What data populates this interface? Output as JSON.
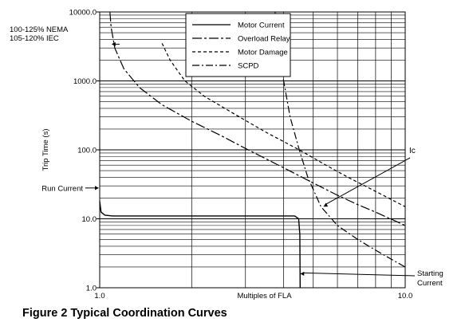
{
  "caption": "Figure 2 Typical Coordination Curves",
  "chart_data": {
    "type": "line",
    "title": "",
    "xlabel": "Multiples of FLA",
    "ylabel": "Trip Time (s)",
    "x_scale": "log",
    "y_scale": "log",
    "xlim": [
      1.0,
      10.0
    ],
    "ylim": [
      1.0,
      10000.0
    ],
    "x_tick_labels": [
      {
        "value": 1.0,
        "label": "1.0"
      },
      {
        "value": 10.0,
        "label": "10.0"
      }
    ],
    "y_tick_labels": [
      {
        "value": 1.0,
        "label": "1.0"
      },
      {
        "value": 10.0,
        "label": "10.0"
      },
      {
        "value": 100.0,
        "label": "100.0"
      },
      {
        "value": 1000.0,
        "label": "1000.0"
      },
      {
        "value": 10000.0,
        "label": "10000.0"
      }
    ],
    "grid": true,
    "legend": {
      "placement": "top-center",
      "entries": [
        {
          "name": "Motor Current",
          "style": "solid"
        },
        {
          "name": "Overload Relay",
          "style": "dash-dot"
        },
        {
          "name": "Motor Damage",
          "style": "dashed"
        },
        {
          "name": "SCPD",
          "style": "dash-dot"
        }
      ]
    },
    "series": [
      {
        "name": "Motor Current",
        "style": "solid",
        "points": [
          [
            1.0,
            18.0
          ],
          [
            1.01,
            12.5
          ],
          [
            1.04,
            11.3
          ],
          [
            1.1,
            11.0
          ],
          [
            4.35,
            11.0
          ],
          [
            4.48,
            10.0
          ],
          [
            4.52,
            6.0
          ],
          [
            4.53,
            1.0
          ]
        ]
      },
      {
        "name": "Overload Relay",
        "style": "dash-dot",
        "points": [
          [
            1.08,
            10000.0
          ],
          [
            1.09,
            6000.0
          ],
          [
            1.12,
            3000.0
          ],
          [
            1.2,
            1500.0
          ],
          [
            1.35,
            800.0
          ],
          [
            1.6,
            450.0
          ],
          [
            2.0,
            260.0
          ],
          [
            2.5,
            160.0
          ],
          [
            3.0,
            105.0
          ],
          [
            4.0,
            55.0
          ],
          [
            5.0,
            33.0
          ],
          [
            6.0,
            22.0
          ],
          [
            7.0,
            16.0
          ],
          [
            8.0,
            12.5
          ],
          [
            10.0,
            8.0
          ]
        ]
      },
      {
        "name": "Motor Damage",
        "style": "dashed",
        "points": [
          [
            1.6,
            3500.0
          ],
          [
            1.7,
            2000.0
          ],
          [
            1.9,
            1000.0
          ],
          [
            2.2,
            600.0
          ],
          [
            2.7,
            350.0
          ],
          [
            3.5,
            180.0
          ],
          [
            4.5,
            100.0
          ],
          [
            5.5,
            60.0
          ],
          [
            6.5,
            40.0
          ],
          [
            8.0,
            25.0
          ],
          [
            10.0,
            15.0
          ]
        ]
      },
      {
        "name": "SCPD",
        "style": "dash-dot",
        "points": [
          [
            3.75,
            10000.0
          ],
          [
            3.85,
            3000.0
          ],
          [
            4.0,
            1000.0
          ],
          [
            4.2,
            300.0
          ],
          [
            4.5,
            100.0
          ],
          [
            4.8,
            40.0
          ],
          [
            5.3,
            15.0
          ],
          [
            6.0,
            8.0
          ],
          [
            7.0,
            5.0
          ],
          [
            8.0,
            3.5
          ],
          [
            9.0,
            2.6
          ],
          [
            10.0,
            2.0
          ]
        ]
      }
    ],
    "annotations": [
      {
        "id": "nema",
        "lines": [
          "100-125% NEMA",
          "105-120% IEC"
        ],
        "arrow_to": [
          1.08,
          4000.0
        ]
      },
      {
        "id": "run-current",
        "lines": [
          "Run Current"
        ],
        "arrow_to": [
          1.0,
          30.0
        ]
      },
      {
        "id": "ic",
        "lines": [
          "Ic"
        ],
        "arrow_to": [
          5.4,
          15.0
        ]
      },
      {
        "id": "starting-current",
        "lines": [
          "Starting",
          "Current"
        ],
        "arrow_to": [
          4.53,
          1.6
        ]
      }
    ]
  }
}
